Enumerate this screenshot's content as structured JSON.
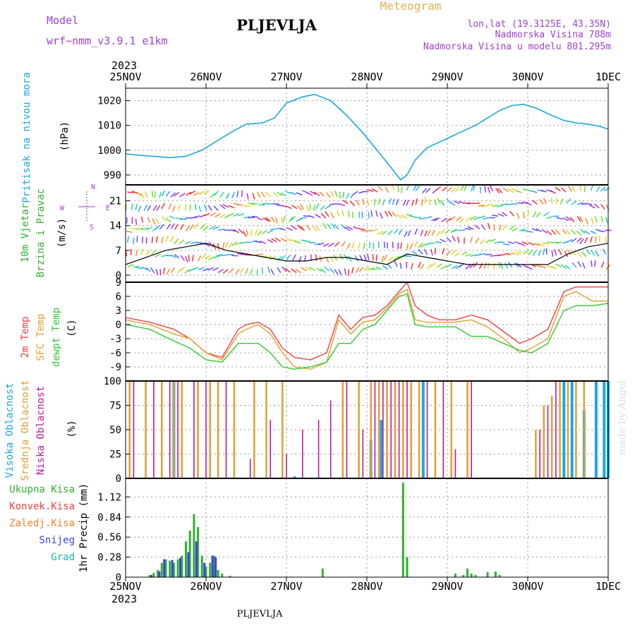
{
  "header": {
    "model_label": "Model",
    "model_name": "wrf−nmm_v3.9.1  e1km",
    "title": "PLJEVLJA",
    "meteogram": "Meteogram",
    "lonlat": "lon,lat (19.3125E, 43.35N)",
    "altitude": "Nadmorska Visina 788m",
    "model_altitude": "Nadmorska Visina u modelu 801.295m",
    "year_top": "2023",
    "year_bottom": "2023",
    "footer": "PLJEVLJA",
    "watermark": "made by Angel"
  },
  "colors": {
    "pressure": "#1aa8e0",
    "temp2m": "#f04040",
    "sfc": "#e0a030",
    "dewpt": "#30cc30",
    "high_cloud": "#1aa8e0",
    "mid_cloud": "#e0a030",
    "low_cloud": "#c0189a",
    "precip_total": "#30b030",
    "precip_conv": "#f04040",
    "precip_frozen": "#f08030",
    "snow": "#4040e0",
    "hail": "#20b0b0",
    "wind_label": "#30b030",
    "dir_label": "#a040d0"
  },
  "chart_data": [
    {
      "id": "pressure",
      "type": "line",
      "ylabel": "Pritisak na nivou mora",
      "units": "(hPa)",
      "yticks": [
        "990",
        "1000",
        "1010",
        "1020"
      ],
      "ylim": [
        986,
        1025
      ],
      "x_days": [
        0,
        0.15,
        0.35,
        0.55,
        0.75,
        0.95,
        1.1,
        1.3,
        1.5,
        1.7,
        1.85,
        2.0,
        2.2,
        2.35,
        2.55,
        2.75,
        2.95,
        3.15,
        3.3,
        3.42,
        3.5,
        3.6,
        3.75,
        3.95,
        4.15,
        4.35,
        4.5,
        4.65,
        4.8,
        4.95,
        5.1,
        5.3,
        5.45,
        5.6,
        5.75,
        5.9,
        6.0
      ],
      "values": [
        998.5,
        998,
        997.5,
        997,
        997.5,
        1000,
        1003,
        1007,
        1010.5,
        1011,
        1013,
        1019,
        1021.5,
        1022.5,
        1020,
        1014,
        1007,
        999,
        993,
        988,
        990,
        996,
        1001,
        1004,
        1007,
        1010,
        1013,
        1016,
        1018,
        1018.5,
        1017,
        1014,
        1012,
        1011,
        1010.5,
        1009.5,
        1008.5
      ]
    },
    {
      "id": "wind",
      "type": "line",
      "ylabel": "10m Vjetar",
      "ylabel2": "Brzina i Pravac",
      "units": "(m/s)",
      "yticks": [
        "0",
        "7",
        "14",
        "21"
      ],
      "ylim": [
        -2,
        25.5
      ],
      "compass": {
        "n": "N",
        "e": "E",
        "s": "S",
        "w": "W"
      },
      "x_days": [
        0,
        0.25,
        0.5,
        0.75,
        1.0,
        1.25,
        1.5,
        1.75,
        2.0,
        2.25,
        2.5,
        2.75,
        3.0,
        3.25,
        3.5,
        3.75,
        4.0,
        4.25,
        4.5,
        4.75,
        5.0,
        5.25,
        5.5,
        5.75,
        6.0
      ],
      "values": [
        3,
        5,
        7,
        8,
        9,
        7,
        6,
        5,
        4,
        4,
        5,
        5,
        4,
        3,
        6,
        5,
        4,
        3,
        3,
        3,
        3,
        3,
        6,
        8,
        9
      ]
    },
    {
      "id": "temperature",
      "type": "line",
      "ylabel": "2m Temp",
      "ylabel2": "SFC Temp",
      "ylabel3": "dewpt Temp",
      "units": "(C)",
      "yticks": [
        "-9",
        "-6",
        "-3",
        "0",
        "3",
        "6",
        "9"
      ],
      "ylim": [
        -12,
        9
      ],
      "x_days": [
        0,
        0.3,
        0.6,
        0.8,
        1.0,
        1.2,
        1.4,
        1.5,
        1.65,
        1.8,
        1.95,
        2.1,
        2.3,
        2.5,
        2.65,
        2.8,
        2.95,
        3.1,
        3.25,
        3.4,
        3.5,
        3.6,
        3.75,
        3.9,
        4.1,
        4.3,
        4.5,
        4.7,
        4.9,
        5.05,
        5.25,
        5.45,
        5.6,
        5.8,
        6.0
      ],
      "series": [
        {
          "name": "2m Temp",
          "values": [
            1.5,
            0.5,
            -1,
            -3,
            -6,
            -7,
            -1,
            0,
            0.5,
            -1,
            -5,
            -7,
            -7.5,
            -6,
            2,
            -1,
            1.5,
            2,
            4,
            7,
            9,
            4,
            2,
            1,
            1,
            2,
            1,
            -1.5,
            -4,
            -3,
            -1,
            7,
            8,
            8,
            8
          ]
        },
        {
          "name": "SFC Temp",
          "values": [
            1,
            0,
            -2,
            -3,
            -6,
            -7.5,
            -2,
            -1,
            0,
            -2,
            -6,
            -9,
            -9.5,
            -8,
            1,
            -2,
            0.5,
            1,
            3.5,
            6.5,
            7.5,
            1,
            0.5,
            0.5,
            0.5,
            1,
            -0.5,
            -3,
            -6,
            -5,
            -3,
            6,
            7,
            5,
            5
          ]
        },
        {
          "name": "dewpt Temp",
          "values": [
            0,
            -1,
            -3.5,
            -5,
            -7.5,
            -8,
            -4,
            -4,
            -4,
            -6,
            -9,
            -9.5,
            -9,
            -8,
            -4,
            -4,
            -1,
            0,
            3,
            6,
            6.5,
            0,
            -0.5,
            -0.5,
            -0.5,
            -2.5,
            -2.5,
            -4,
            -5.5,
            -6,
            -4,
            3,
            4,
            4,
            4.5
          ]
        }
      ]
    },
    {
      "id": "clouds",
      "type": "bar",
      "ylabel": "Visoka Oblacnost",
      "ylabel2": "Srednja Oblacnost",
      "ylabel3": "Niska Oblacnost",
      "units": "(%)",
      "yticks": [
        "0",
        "25",
        "50",
        "75",
        "100"
      ],
      "ylim": [
        0,
        100
      ],
      "series": [
        {
          "name": "Visoka Oblacnost",
          "x_days": [
            0.6,
            2.1,
            3.05,
            3.18,
            3.7,
            5.45,
            5.55,
            5.7,
            5.85,
            5.95,
            6.0
          ],
          "values": [
            100,
            2,
            40,
            60,
            100,
            100,
            100,
            70,
            100,
            100,
            100
          ]
        },
        {
          "name": "Srednja Oblacnost",
          "x_days": [
            0.05,
            0.25,
            0.45,
            0.6,
            0.7,
            0.9,
            1.05,
            1.15,
            1.35,
            1.6,
            1.75,
            1.95,
            2.7,
            2.9,
            3.05,
            3.15,
            3.25,
            3.35,
            3.45,
            3.55,
            3.65,
            3.85,
            4.05,
            4.25,
            5.1,
            5.2,
            5.3,
            5.4,
            5.5,
            5.6,
            5.7
          ],
          "values": [
            100,
            100,
            100,
            100,
            100,
            100,
            100,
            100,
            100,
            100,
            100,
            100,
            100,
            100,
            100,
            100,
            100,
            100,
            100,
            100,
            100,
            100,
            100,
            100,
            50,
            75,
            85,
            100,
            100,
            100,
            100
          ]
        },
        {
          "name": "Niska Oblacnost",
          "x_days": [
            0.1,
            0.35,
            0.55,
            0.65,
            0.85,
            1.0,
            1.25,
            1.55,
            1.8,
            2.0,
            2.2,
            2.4,
            2.55,
            2.75,
            2.95,
            3.1,
            3.2,
            3.3,
            3.4,
            3.5,
            3.75,
            3.95,
            4.1,
            4.3,
            5.15,
            5.25,
            5.35
          ],
          "values": [
            100,
            100,
            100,
            100,
            100,
            100,
            100,
            20,
            60,
            25,
            50,
            60,
            80,
            100,
            50,
            100,
            100,
            100,
            100,
            100,
            100,
            100,
            30,
            100,
            50,
            75,
            100
          ]
        }
      ]
    },
    {
      "id": "precip",
      "type": "bar",
      "ylabel": "1hr Precip",
      "units": "(mm)",
      "yticks": [
        "0",
        "0.28",
        "0.56",
        "0.84",
        "1.12"
      ],
      "ylim": [
        0,
        1.38
      ],
      "legend": [
        {
          "name": "Ukupna Kisa",
          "color_key": "precip_total"
        },
        {
          "name": "Konvek.Kisa",
          "color_key": "precip_conv"
        },
        {
          "name": "Zaledj.Kisa",
          "color_key": "precip_frozen"
        },
        {
          "name": "Snijeg",
          "color_key": "snow"
        },
        {
          "name": "Grad",
          "color_key": "hail"
        }
      ],
      "series": [
        {
          "name": "Ukupna Kisa",
          "x_days": [
            0.3,
            0.35,
            0.4,
            0.45,
            0.5,
            0.55,
            0.6,
            0.65,
            0.7,
            0.75,
            0.8,
            0.85,
            0.9,
            0.95,
            1.0,
            1.05,
            1.1,
            1.15,
            1.2,
            1.3,
            2.45,
            3.45,
            3.5,
            4.1,
            4.2,
            4.25,
            4.3,
            4.35,
            4.5,
            4.6,
            4.65
          ],
          "values": [
            0.03,
            0.06,
            0.1,
            0.2,
            0.25,
            0.23,
            0.2,
            0.25,
            0.3,
            0.5,
            0.65,
            0.88,
            0.7,
            0.3,
            0.15,
            0.2,
            0.3,
            0.1,
            0.05,
            0.02,
            0.12,
            1.32,
            0.28,
            0.05,
            0.03,
            0.12,
            0.05,
            0.03,
            0.07,
            0.08,
            0.03
          ]
        },
        {
          "name": "Snijeg",
          "x_days": [
            0.32,
            0.42,
            0.48,
            0.58,
            0.68,
            0.78,
            0.88,
            0.98,
            1.08,
            1.12
          ],
          "values": [
            0.03,
            0.08,
            0.25,
            0.24,
            0.27,
            0.35,
            0.5,
            0.2,
            0.3,
            0.28
          ]
        }
      ]
    }
  ],
  "x_axis": {
    "tick_labels": [
      "25NOV",
      "26NOV",
      "27NOV",
      "28NOV",
      "29NOV",
      "30NOV",
      "1DEC"
    ]
  }
}
